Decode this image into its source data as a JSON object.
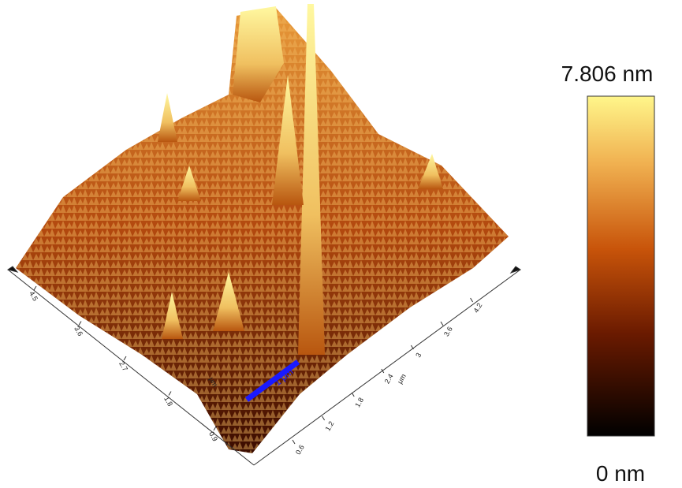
{
  "colorbar": {
    "max_label": "7.806 nm",
    "min_label": "0 nm"
  },
  "axes": {
    "right": {
      "unit": "μm",
      "ticks": [
        "0.6",
        "1.2",
        "1.8",
        "2.4",
        "3",
        "3.6",
        "4.2"
      ]
    },
    "left": {
      "unit": "μm",
      "ticks": [
        "0.9",
        "1.8",
        "2.7",
        "3.6",
        "4.5"
      ]
    }
  },
  "scale_bar": "1 μm"
}
